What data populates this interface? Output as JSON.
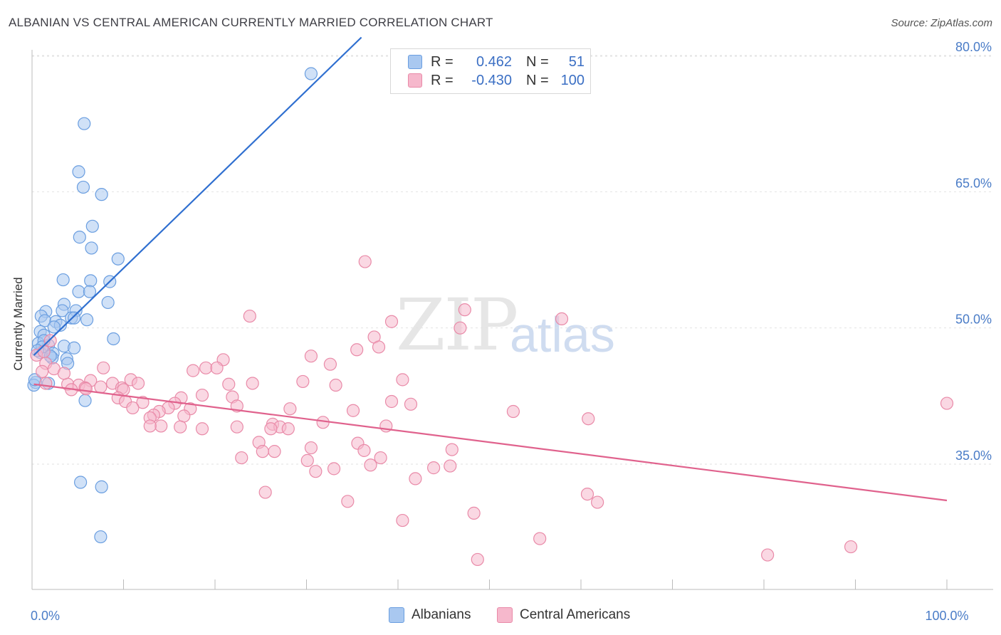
{
  "title": "ALBANIAN VS CENTRAL AMERICAN CURRENTLY MARRIED CORRELATION CHART",
  "source": "Source: ZipAtlas.com",
  "watermark": {
    "part1": "ZIP",
    "part2": "atlas"
  },
  "legend": {
    "rows": [
      {
        "r_label": "R =",
        "r_value": "0.462",
        "n_label": "N =",
        "n_value": "51",
        "color": "#a9c8f0"
      },
      {
        "r_label": "R =",
        "r_value": "-0.430",
        "n_label": "N =",
        "n_value": "100",
        "color": "#f6b8cc"
      }
    ]
  },
  "bottom_legend": [
    {
      "label": "Albanians",
      "color": "#a9c8f0"
    },
    {
      "label": "Central Americans",
      "color": "#f6b8cc"
    }
  ],
  "chart_data": {
    "type": "scatter",
    "title": "ALBANIAN VS CENTRAL AMERICAN CURRENTLY MARRIED CORRELATION CHART",
    "xlabel": "",
    "ylabel": "Currently Married",
    "xlim": [
      0,
      100
    ],
    "ylim": [
      22,
      83
    ],
    "x_tick_labels": [
      {
        "x": 0,
        "label": "0.0%"
      },
      {
        "x": 100,
        "label": "100.0%"
      }
    ],
    "y_tick_labels": [
      {
        "y": 35,
        "label": "35.0%"
      },
      {
        "y": 50,
        "label": "50.0%"
      },
      {
        "y": 65,
        "label": "65.0%"
      },
      {
        "y": 80,
        "label": "80.0%"
      }
    ],
    "grid": true,
    "series": [
      {
        "name": "Albanians",
        "color": "#a9c8f0",
        "stroke": "#6a9ee0",
        "trend": {
          "x": [
            0.2,
            36.0
          ],
          "y": [
            47.0,
            82.0
          ],
          "color": "#2f6fd0"
        },
        "points": [
          [
            30.5,
            78.0
          ],
          [
            5.7,
            72.5
          ],
          [
            5.1,
            67.2
          ],
          [
            5.6,
            65.5
          ],
          [
            7.6,
            64.7
          ],
          [
            6.6,
            61.2
          ],
          [
            5.2,
            60.0
          ],
          [
            6.5,
            58.8
          ],
          [
            9.4,
            57.6
          ],
          [
            3.4,
            55.3
          ],
          [
            6.4,
            55.2
          ],
          [
            8.5,
            55.1
          ],
          [
            5.1,
            54.0
          ],
          [
            6.3,
            54.0
          ],
          [
            8.3,
            52.8
          ],
          [
            3.5,
            52.6
          ],
          [
            1.5,
            51.8
          ],
          [
            3.3,
            51.9
          ],
          [
            4.8,
            51.9
          ],
          [
            1.0,
            51.3
          ],
          [
            4.3,
            51.1
          ],
          [
            4.6,
            51.1
          ],
          [
            6.0,
            50.9
          ],
          [
            1.4,
            50.8
          ],
          [
            2.6,
            50.7
          ],
          [
            3.1,
            50.3
          ],
          [
            2.4,
            50.1
          ],
          [
            0.9,
            49.6
          ],
          [
            1.3,
            49.2
          ],
          [
            8.9,
            48.8
          ],
          [
            0.7,
            48.3
          ],
          [
            1.8,
            48.1
          ],
          [
            3.5,
            48.0
          ],
          [
            4.6,
            47.8
          ],
          [
            0.9,
            47.3
          ],
          [
            2.3,
            47.2
          ],
          [
            2.2,
            46.7
          ],
          [
            3.8,
            46.6
          ],
          [
            3.9,
            46.1
          ],
          [
            0.4,
            44.0
          ],
          [
            0.2,
            43.7
          ],
          [
            1.8,
            43.9
          ],
          [
            5.8,
            42.0
          ],
          [
            5.3,
            33.0
          ],
          [
            7.6,
            32.5
          ],
          [
            7.5,
            27.0
          ],
          [
            1.3,
            48.6
          ],
          [
            1.1,
            47.9
          ],
          [
            0.6,
            47.5
          ],
          [
            2.0,
            46.9
          ],
          [
            0.3,
            44.3
          ]
        ]
      },
      {
        "name": "Central Americans",
        "color": "#f6b8cc",
        "stroke": "#e98aa8",
        "trend": {
          "x": [
            0.2,
            100.0
          ],
          "y": [
            43.8,
            31.0
          ],
          "color": "#e0628d"
        },
        "points": [
          [
            36.4,
            57.3
          ],
          [
            47.3,
            52.0
          ],
          [
            23.8,
            51.3
          ],
          [
            39.3,
            50.7
          ],
          [
            57.9,
            51.0
          ],
          [
            46.8,
            50.0
          ],
          [
            37.4,
            49.0
          ],
          [
            37.9,
            47.9
          ],
          [
            35.5,
            47.6
          ],
          [
            30.5,
            46.9
          ],
          [
            20.9,
            46.5
          ],
          [
            32.6,
            46.0
          ],
          [
            7.8,
            45.6
          ],
          [
            19.0,
            45.6
          ],
          [
            20.2,
            45.6
          ],
          [
            17.6,
            45.3
          ],
          [
            40.5,
            44.3
          ],
          [
            10.8,
            44.3
          ],
          [
            6.4,
            44.2
          ],
          [
            8.8,
            43.9
          ],
          [
            11.6,
            43.9
          ],
          [
            21.5,
            43.8
          ],
          [
            24.1,
            43.9
          ],
          [
            29.6,
            44.1
          ],
          [
            33.2,
            43.7
          ],
          [
            3.9,
            43.8
          ],
          [
            5.1,
            43.7
          ],
          [
            5.8,
            43.4
          ],
          [
            7.5,
            43.5
          ],
          [
            9.8,
            43.4
          ],
          [
            10.0,
            43.2
          ],
          [
            5.9,
            43.3
          ],
          [
            4.3,
            43.2
          ],
          [
            18.6,
            42.6
          ],
          [
            16.3,
            42.3
          ],
          [
            21.9,
            42.4
          ],
          [
            9.4,
            42.3
          ],
          [
            10.2,
            41.9
          ],
          [
            12.1,
            41.8
          ],
          [
            15.6,
            41.7
          ],
          [
            39.3,
            41.9
          ],
          [
            41.4,
            41.6
          ],
          [
            22.4,
            41.4
          ],
          [
            14.9,
            41.2
          ],
          [
            11.0,
            41.2
          ],
          [
            28.2,
            41.1
          ],
          [
            17.3,
            41.1
          ],
          [
            35.1,
            40.9
          ],
          [
            52.6,
            40.8
          ],
          [
            13.9,
            40.8
          ],
          [
            16.6,
            40.3
          ],
          [
            13.3,
            40.4
          ],
          [
            12.9,
            40.1
          ],
          [
            31.8,
            39.6
          ],
          [
            60.8,
            40.0
          ],
          [
            38.7,
            39.2
          ],
          [
            26.3,
            39.4
          ],
          [
            27.1,
            39.1
          ],
          [
            26.1,
            38.9
          ],
          [
            28.0,
            38.9
          ],
          [
            22.4,
            39.1
          ],
          [
            18.6,
            38.9
          ],
          [
            14.1,
            39.2
          ],
          [
            12.9,
            39.2
          ],
          [
            16.2,
            39.1
          ],
          [
            24.8,
            37.4
          ],
          [
            35.6,
            37.3
          ],
          [
            45.9,
            36.6
          ],
          [
            30.5,
            36.8
          ],
          [
            25.2,
            36.4
          ],
          [
            26.5,
            36.4
          ],
          [
            22.9,
            35.7
          ],
          [
            38.1,
            35.7
          ],
          [
            30.1,
            35.4
          ],
          [
            37.0,
            34.9
          ],
          [
            43.9,
            34.6
          ],
          [
            45.7,
            34.8
          ],
          [
            33.0,
            34.5
          ],
          [
            31.0,
            34.2
          ],
          [
            41.9,
            33.4
          ],
          [
            100.0,
            41.7
          ],
          [
            60.7,
            31.7
          ],
          [
            61.8,
            30.8
          ],
          [
            25.5,
            31.9
          ],
          [
            34.5,
            30.9
          ],
          [
            48.3,
            29.6
          ],
          [
            40.5,
            28.8
          ],
          [
            55.5,
            26.8
          ],
          [
            48.7,
            24.5
          ],
          [
            80.4,
            25.0
          ],
          [
            89.5,
            25.9
          ],
          [
            0.5,
            47.0
          ],
          [
            1.5,
            46.1
          ],
          [
            2.4,
            45.5
          ],
          [
            1.5,
            43.9
          ],
          [
            1.1,
            45.2
          ],
          [
            3.5,
            45.0
          ],
          [
            2.0,
            48.6
          ],
          [
            1.3,
            47.4
          ],
          [
            36.3,
            36.5
          ]
        ]
      }
    ]
  }
}
